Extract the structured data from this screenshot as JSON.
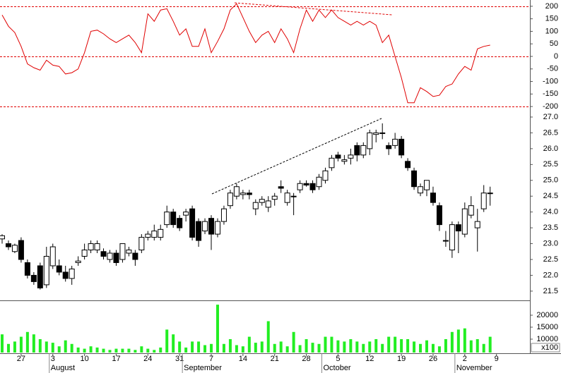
{
  "chart_data": [
    {
      "type": "line",
      "series": [
        {
          "color": "#e00000",
          "values": [
            165,
            120,
            95,
            40,
            -30,
            -45,
            -55,
            -15,
            -35,
            -40,
            -70,
            -65,
            -50,
            15,
            100,
            105,
            90,
            70,
            55,
            70,
            85,
            55,
            15,
            170,
            140,
            185,
            190,
            140,
            85,
            110,
            40,
            40,
            110,
            15,
            60,
            110,
            185,
            210,
            155,
            100,
            55,
            85,
            100,
            55,
            110,
            70,
            15,
            110,
            185,
            140,
            185,
            155,
            185,
            155,
            140,
            125,
            140,
            125,
            140,
            125,
            55,
            85,
            0,
            -85,
            -185,
            -185,
            -125,
            -140,
            -160,
            -155,
            -120,
            -110,
            -70,
            -40,
            -55,
            30,
            40,
            45,
            null
          ]
        }
      ],
      "reference_lines": [
        200,
        0,
        -200
      ],
      "ylim": [
        -211,
        225
      ],
      "yticks": [
        200,
        150,
        100,
        50,
        0,
        -50,
        -100,
        -150,
        -200
      ]
    },
    {
      "type": "candlestick",
      "open": [
        23.15,
        23.0,
        22.75,
        23.1,
        22.4,
        22.0,
        22.3,
        21.7,
        22.3,
        22.3,
        22.1,
        21.9,
        22.4,
        22.6,
        22.8,
        22.8,
        22.75,
        22.5,
        22.7,
        22.5,
        22.7,
        22.7,
        22.8,
        23.2,
        23.2,
        23.2,
        23.6,
        24.0,
        23.8,
        23.9,
        24.1,
        23.7,
        23.4,
        23.8,
        23.3,
        23.7,
        24.2,
        24.5,
        24.55,
        24.6,
        24.1,
        24.3,
        24.15,
        24.4,
        24.8,
        24.3,
        24.5,
        24.7,
        24.9,
        24.9,
        24.8,
        25.0,
        25.4,
        25.8,
        25.6,
        25.7,
        26.1,
        25.8,
        26.0,
        26.45,
        26.5,
        26.1,
        26.1,
        26.3,
        25.6,
        25.3,
        24.6,
        24.7,
        24.6,
        24.2,
        23.1,
        22.8,
        23.6,
        23.3,
        23.9,
        23.5,
        24.1,
        24.6,
        null
      ],
      "high": [
        23.3,
        23.1,
        23.0,
        23.2,
        22.5,
        22.1,
        22.4,
        22.9,
        23.0,
        22.5,
        22.3,
        22.3,
        22.6,
        23.0,
        23.1,
        23.1,
        22.85,
        22.8,
        22.8,
        23.0,
        22.9,
        22.8,
        23.3,
        23.4,
        23.6,
        23.6,
        24.2,
        24.1,
        23.9,
        24.1,
        24.2,
        23.8,
        23.8,
        23.9,
        23.8,
        24.2,
        24.7,
        24.9,
        24.7,
        24.7,
        24.4,
        24.5,
        24.5,
        24.6,
        25.0,
        24.7,
        24.6,
        25.0,
        25.0,
        25.0,
        25.2,
        25.4,
        25.8,
        25.9,
        25.8,
        26.0,
        26.2,
        26.2,
        26.6,
        26.6,
        26.8,
        26.2,
        26.5,
        26.4,
        25.7,
        25.4,
        24.9,
        25.0,
        24.8,
        24.3,
        23.4,
        23.7,
        23.7,
        24.3,
        24.5,
        24.1,
        24.85,
        24.8,
        null
      ],
      "low": [
        23.0,
        22.8,
        22.7,
        22.4,
        21.9,
        21.7,
        21.55,
        21.6,
        22.2,
        22.0,
        21.8,
        21.7,
        22.3,
        22.5,
        22.7,
        22.7,
        22.5,
        22.4,
        22.3,
        22.4,
        22.6,
        22.3,
        22.7,
        23.1,
        23.1,
        23.1,
        23.5,
        23.5,
        23.4,
        23.7,
        23.1,
        22.9,
        23.3,
        22.8,
        23.2,
        23.6,
        24.1,
        24.4,
        24.4,
        24.4,
        23.9,
        24.2,
        24.0,
        24.2,
        24.6,
        24.2,
        23.9,
        24.6,
        24.8,
        24.6,
        24.7,
        24.9,
        25.3,
        25.6,
        25.5,
        25.5,
        25.6,
        25.7,
        25.8,
        26.2,
        26.3,
        25.8,
        26.0,
        25.7,
        25.3,
        24.7,
        24.5,
        24.5,
        24.2,
        23.4,
        22.9,
        22.55,
        22.7,
        23.2,
        23.8,
        22.75,
        24.0,
        24.2,
        null
      ],
      "close": [
        23.25,
        22.9,
        22.95,
        22.5,
        22.0,
        21.8,
        21.6,
        22.6,
        22.9,
        22.1,
        21.9,
        22.2,
        22.45,
        22.8,
        23.0,
        23.0,
        22.6,
        22.7,
        22.4,
        23.0,
        22.8,
        22.5,
        23.2,
        23.3,
        23.4,
        23.45,
        24.0,
        23.6,
        23.5,
        24.0,
        23.2,
        23.1,
        23.7,
        23.3,
        23.7,
        24.1,
        24.6,
        24.8,
        24.6,
        24.55,
        24.3,
        24.4,
        24.35,
        24.5,
        24.75,
        24.6,
        24.5,
        24.9,
        24.85,
        24.7,
        25.1,
        25.3,
        25.7,
        25.7,
        25.65,
        25.8,
        25.8,
        26.1,
        26.5,
        26.5,
        26.5,
        26.0,
        26.3,
        25.8,
        25.4,
        24.8,
        24.8,
        25.0,
        24.3,
        23.6,
        23.1,
        23.6,
        23.4,
        24.1,
        24.2,
        23.7,
        24.6,
        24.6,
        null
      ],
      "ylim": [
        21.23,
        27.2
      ],
      "yticks": [
        {
          "value": 27,
          "label": "27.0"
        },
        26.5,
        {
          "value": 26,
          "label": "26.0"
        },
        25.5,
        {
          "value": 25,
          "label": "25.0"
        },
        24.5,
        {
          "value": 24,
          "label": "24.0"
        },
        23.5,
        {
          "value": 23,
          "label": "23.0"
        },
        22.5,
        {
          "value": 22,
          "label": "22.0"
        },
        21.5
      ]
    },
    {
      "type": "bar",
      "color": "#22ee22",
      "categories": [
        null,
        null,
        null,
        "27",
        null,
        null,
        null,
        null,
        "3",
        null,
        null,
        null,
        null,
        "10",
        null,
        null,
        null,
        null,
        "17",
        null,
        null,
        null,
        null,
        "24",
        null,
        null,
        null,
        null,
        "31",
        null,
        null,
        null,
        null,
        "7",
        null,
        null,
        null,
        null,
        "14",
        null,
        null,
        null,
        null,
        "21",
        null,
        null,
        null,
        null,
        "28",
        null,
        null,
        null,
        null,
        "5",
        null,
        null,
        null,
        null,
        "12",
        null,
        null,
        null,
        null,
        "19",
        null,
        null,
        null,
        null,
        "26",
        null,
        null,
        null,
        null,
        "2",
        null,
        null,
        null,
        null,
        "9"
      ],
      "months": [
        null,
        null,
        null,
        null,
        null,
        null,
        null,
        null,
        "August",
        null,
        null,
        null,
        null,
        null,
        null,
        null,
        null,
        null,
        null,
        null,
        null,
        null,
        null,
        null,
        null,
        null,
        null,
        null,
        null,
        "September",
        null,
        null,
        null,
        null,
        null,
        null,
        null,
        null,
        null,
        null,
        null,
        null,
        null,
        null,
        null,
        null,
        null,
        null,
        null,
        null,
        null,
        "October",
        null,
        null,
        null,
        null,
        null,
        null,
        null,
        null,
        null,
        null,
        null,
        null,
        null,
        null,
        null,
        null,
        null,
        null,
        null,
        null,
        "November",
        null,
        null,
        null,
        null,
        null
      ],
      "values": [
        12000,
        8000,
        9000,
        11000,
        13000,
        12000,
        10000,
        9000,
        8500,
        7000,
        9500,
        8000,
        6500,
        6000,
        7000,
        6500,
        6000,
        5500,
        6000,
        6000,
        6000,
        5500,
        7000,
        6000,
        5500,
        6500,
        14000,
        12000,
        9000,
        6500,
        9000,
        9000,
        7500,
        8000,
        24400,
        8000,
        10000,
        7500,
        7000,
        11000,
        8500,
        9000,
        17500,
        8000,
        9000,
        7000,
        13000,
        7500,
        10000,
        8500,
        8000,
        11000,
        11000,
        9500,
        9000,
        10000,
        9000,
        8000,
        9000,
        10000,
        8000,
        11000,
        11000,
        10000,
        10000,
        9000,
        8000,
        9500,
        8000,
        7000,
        10000,
        13000,
        14000,
        14500,
        9500,
        10000,
        8000,
        11000,
        null
      ],
      "ylim": [
        4400,
        25600
      ],
      "yticks": [
        20000,
        15000,
        10000
      ],
      "y_unit_label": "x100"
    }
  ]
}
